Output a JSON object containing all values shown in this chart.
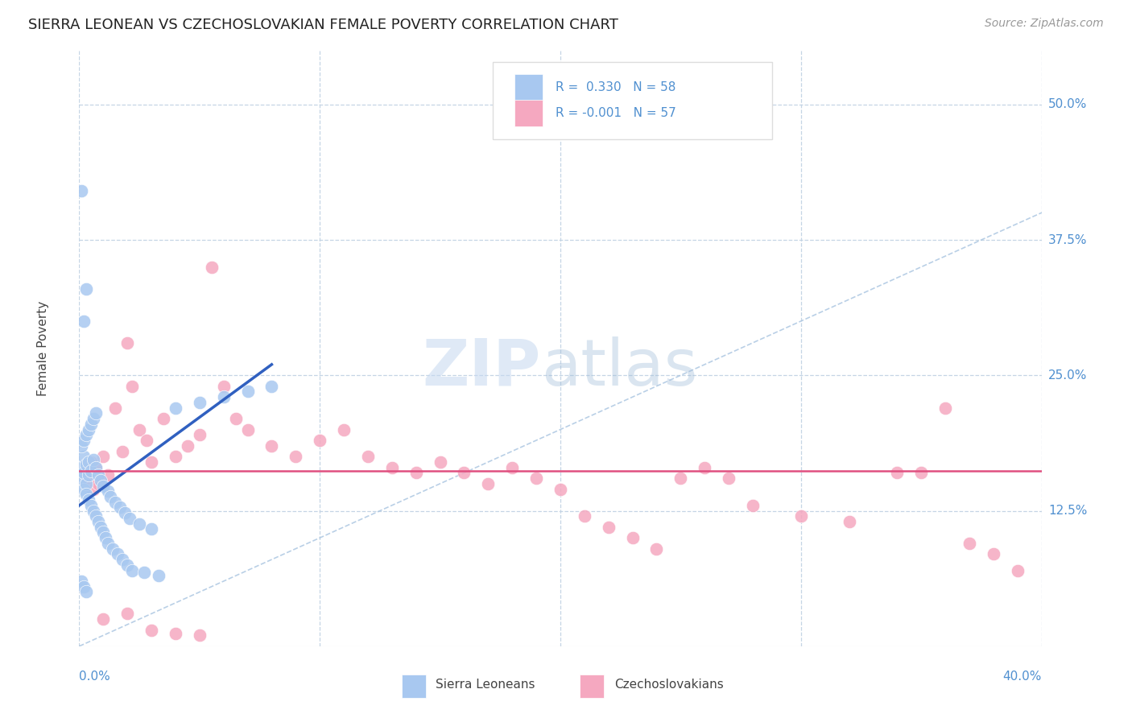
{
  "title": "SIERRA LEONEAN VS CZECHOSLOVAKIAN FEMALE POVERTY CORRELATION CHART",
  "source": "Source: ZipAtlas.com",
  "ylabel": "Female Poverty",
  "right_yticks": [
    "50.0%",
    "37.5%",
    "25.0%",
    "12.5%"
  ],
  "right_ytick_vals": [
    0.5,
    0.375,
    0.25,
    0.125
  ],
  "xlim": [
    0.0,
    0.4
  ],
  "ylim": [
    0.0,
    0.55
  ],
  "blue_color": "#A8C8F0",
  "pink_color": "#F5A8C0",
  "blue_line_color": "#3060C0",
  "pink_line_color": "#E05080",
  "diagonal_color": "#A8C4E0",
  "sierra_x": [
    0.001,
    0.001,
    0.002,
    0.002,
    0.002,
    0.003,
    0.003,
    0.003,
    0.004,
    0.004,
    0.004,
    0.005,
    0.005,
    0.006,
    0.006,
    0.007,
    0.007,
    0.008,
    0.008,
    0.009,
    0.009,
    0.01,
    0.01,
    0.011,
    0.012,
    0.012,
    0.013,
    0.014,
    0.015,
    0.016,
    0.017,
    0.018,
    0.019,
    0.02,
    0.021,
    0.022,
    0.025,
    0.027,
    0.03,
    0.033,
    0.001,
    0.002,
    0.003,
    0.004,
    0.005,
    0.006,
    0.007,
    0.001,
    0.002,
    0.003,
    0.04,
    0.05,
    0.06,
    0.07,
    0.002,
    0.003,
    0.001,
    0.08
  ],
  "sierra_y": [
    0.155,
    0.165,
    0.145,
    0.16,
    0.175,
    0.15,
    0.168,
    0.14,
    0.158,
    0.135,
    0.17,
    0.13,
    0.162,
    0.125,
    0.172,
    0.12,
    0.165,
    0.115,
    0.158,
    0.11,
    0.153,
    0.105,
    0.148,
    0.1,
    0.143,
    0.095,
    0.138,
    0.09,
    0.133,
    0.085,
    0.128,
    0.08,
    0.123,
    0.075,
    0.118,
    0.07,
    0.113,
    0.068,
    0.108,
    0.065,
    0.185,
    0.19,
    0.195,
    0.2,
    0.205,
    0.21,
    0.215,
    0.06,
    0.055,
    0.05,
    0.22,
    0.225,
    0.23,
    0.235,
    0.3,
    0.33,
    0.42,
    0.24
  ],
  "sierra_blue_line_x": [
    0.0,
    0.08
  ],
  "sierra_blue_line_y": [
    0.13,
    0.26
  ],
  "czech_x": [
    0.003,
    0.004,
    0.005,
    0.006,
    0.007,
    0.008,
    0.01,
    0.012,
    0.015,
    0.018,
    0.02,
    0.022,
    0.025,
    0.028,
    0.03,
    0.035,
    0.04,
    0.045,
    0.05,
    0.055,
    0.06,
    0.065,
    0.07,
    0.08,
    0.09,
    0.1,
    0.11,
    0.12,
    0.13,
    0.14,
    0.15,
    0.16,
    0.17,
    0.18,
    0.19,
    0.2,
    0.21,
    0.22,
    0.23,
    0.24,
    0.25,
    0.26,
    0.27,
    0.28,
    0.3,
    0.32,
    0.34,
    0.35,
    0.36,
    0.37,
    0.38,
    0.39,
    0.01,
    0.02,
    0.03,
    0.04,
    0.05
  ],
  "czech_y": [
    0.16,
    0.155,
    0.17,
    0.145,
    0.165,
    0.15,
    0.175,
    0.158,
    0.22,
    0.18,
    0.28,
    0.24,
    0.2,
    0.19,
    0.17,
    0.21,
    0.175,
    0.185,
    0.195,
    0.35,
    0.24,
    0.21,
    0.2,
    0.185,
    0.175,
    0.19,
    0.2,
    0.175,
    0.165,
    0.16,
    0.17,
    0.16,
    0.15,
    0.165,
    0.155,
    0.145,
    0.12,
    0.11,
    0.1,
    0.09,
    0.155,
    0.165,
    0.155,
    0.13,
    0.12,
    0.115,
    0.16,
    0.16,
    0.22,
    0.095,
    0.085,
    0.07,
    0.025,
    0.03,
    0.015,
    0.012,
    0.01
  ],
  "czech_pink_line_y": 0.162
}
